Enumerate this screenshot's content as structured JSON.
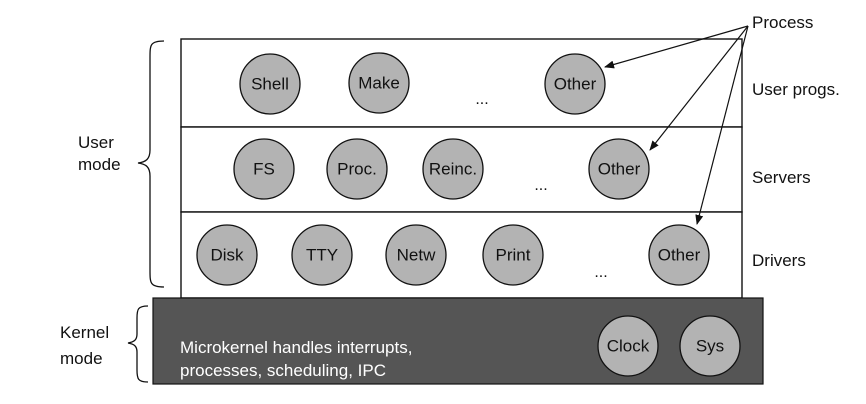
{
  "labels": {
    "process": "Process",
    "user_mode_line1": "User",
    "user_mode_line2": "mode",
    "kernel_mode_line1": "Kernel",
    "kernel_mode_line2": "mode",
    "ellipsis": "..."
  },
  "layers": [
    {
      "name": "User progs.",
      "processes": [
        "Shell",
        "Make",
        "Other"
      ]
    },
    {
      "name": "Servers",
      "processes": [
        "FS",
        "Proc.",
        "Reinc.",
        "Other"
      ]
    },
    {
      "name": "Drivers",
      "processes": [
        "Disk",
        "TTY",
        "Netw",
        "Print",
        "Other"
      ]
    }
  ],
  "kernel": {
    "line1": "Microkernel handles interrupts,",
    "line2": "processes, scheduling, IPC",
    "processes": [
      "Clock",
      "Sys"
    ]
  },
  "colors": {
    "process_fill": "#b3b3b3",
    "kernel_fill": "#555555",
    "line": "#111111"
  }
}
